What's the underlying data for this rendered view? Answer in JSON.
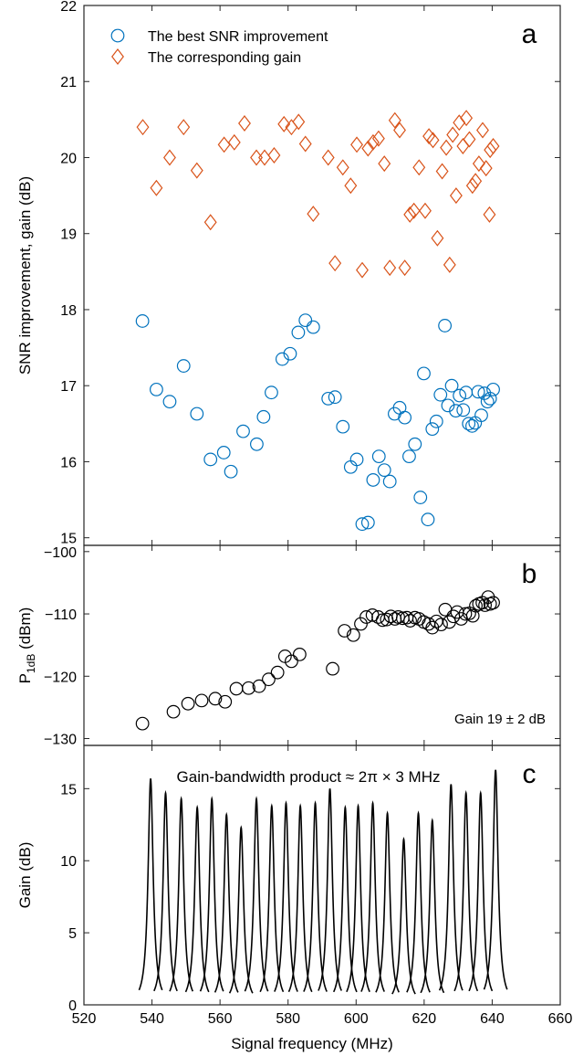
{
  "x_axis": {
    "label": "Signal frequency (MHz)",
    "min": 520,
    "max": 660,
    "ticks": [
      520,
      540,
      560,
      580,
      600,
      620,
      640,
      660
    ]
  },
  "chart_data": [
    {
      "panel": "a",
      "type": "scatter",
      "ylabel": "SNR improvement, gain (dB)",
      "ylim": [
        14.9,
        22.0
      ],
      "yticks": [
        15,
        16,
        17,
        18,
        19,
        20,
        21,
        22
      ],
      "legend": "top-left",
      "series": [
        {
          "name": "The best SNR improvement",
          "marker": "circle",
          "color": "#0072BD",
          "points": [
            [
              537.2,
              17.85
            ],
            [
              541.3,
              16.95
            ],
            [
              545.2,
              16.79
            ],
            [
              549.3,
              17.26
            ],
            [
              553.2,
              16.63
            ],
            [
              557.2,
              16.03
            ],
            [
              561.1,
              16.12
            ],
            [
              563.2,
              15.87
            ],
            [
              566.8,
              16.4
            ],
            [
              570.8,
              16.23
            ],
            [
              572.8,
              16.59
            ],
            [
              575.1,
              16.91
            ],
            [
              578.3,
              17.35
            ],
            [
              580.6,
              17.42
            ],
            [
              583.0,
              17.7
            ],
            [
              585.1,
              17.86
            ],
            [
              587.4,
              17.77
            ],
            [
              591.8,
              16.83
            ],
            [
              593.8,
              16.85
            ],
            [
              596.1,
              16.46
            ],
            [
              598.4,
              15.93
            ],
            [
              600.2,
              16.03
            ],
            [
              601.8,
              15.18
            ],
            [
              603.5,
              15.2
            ],
            [
              605.0,
              15.76
            ],
            [
              606.7,
              16.07
            ],
            [
              608.3,
              15.89
            ],
            [
              609.9,
              15.74
            ],
            [
              611.3,
              16.63
            ],
            [
              612.8,
              16.71
            ],
            [
              614.3,
              16.58
            ],
            [
              615.6,
              16.07
            ],
            [
              617.3,
              16.23
            ],
            [
              618.9,
              15.53
            ],
            [
              619.9,
              17.16
            ],
            [
              621.1,
              15.24
            ],
            [
              622.4,
              16.43
            ],
            [
              623.6,
              16.53
            ],
            [
              624.8,
              16.88
            ],
            [
              626.1,
              17.79
            ],
            [
              627.0,
              16.74
            ],
            [
              628.1,
              17.0
            ],
            [
              629.3,
              16.67
            ],
            [
              630.4,
              16.87
            ],
            [
              631.5,
              16.68
            ],
            [
              632.3,
              16.91
            ],
            [
              633.1,
              16.5
            ],
            [
              634.1,
              16.47
            ],
            [
              635.0,
              16.51
            ],
            [
              635.9,
              16.92
            ],
            [
              636.8,
              16.61
            ],
            [
              637.7,
              16.9
            ],
            [
              638.6,
              16.79
            ],
            [
              639.4,
              16.83
            ],
            [
              640.3,
              16.95
            ]
          ]
        },
        {
          "name": "The corresponding gain",
          "marker": "diamond",
          "color": "#D95319",
          "points": [
            [
              537.3,
              20.4
            ],
            [
              541.3,
              19.6
            ],
            [
              545.2,
              20.0
            ],
            [
              549.3,
              20.4
            ],
            [
              553.2,
              19.83
            ],
            [
              557.2,
              19.15
            ],
            [
              561.2,
              20.17
            ],
            [
              564.2,
              20.2
            ],
            [
              567.2,
              20.45
            ],
            [
              570.7,
              20.0
            ],
            [
              573.1,
              20.0
            ],
            [
              575.9,
              20.03
            ],
            [
              578.8,
              20.44
            ],
            [
              581.0,
              20.4
            ],
            [
              583.1,
              20.47
            ],
            [
              585.1,
              20.18
            ],
            [
              587.4,
              19.26
            ],
            [
              591.8,
              20.0
            ],
            [
              593.8,
              18.61
            ],
            [
              596.1,
              19.87
            ],
            [
              598.4,
              19.63
            ],
            [
              600.2,
              20.17
            ],
            [
              601.8,
              18.52
            ],
            [
              603.5,
              20.12
            ],
            [
              605.0,
              20.2
            ],
            [
              606.6,
              20.25
            ],
            [
              608.3,
              19.92
            ],
            [
              609.9,
              18.55
            ],
            [
              611.4,
              20.49
            ],
            [
              612.8,
              20.36
            ],
            [
              614.3,
              18.55
            ],
            [
              615.8,
              19.25
            ],
            [
              617.0,
              19.3
            ],
            [
              618.5,
              19.87
            ],
            [
              620.3,
              19.3
            ],
            [
              621.4,
              20.28
            ],
            [
              622.6,
              20.23
            ],
            [
              623.9,
              18.94
            ],
            [
              625.3,
              19.82
            ],
            [
              626.5,
              20.13
            ],
            [
              627.5,
              18.59
            ],
            [
              628.4,
              20.3
            ],
            [
              629.4,
              19.5
            ],
            [
              630.3,
              20.46
            ],
            [
              631.4,
              20.15
            ],
            [
              632.4,
              20.52
            ],
            [
              633.3,
              20.24
            ],
            [
              634.2,
              19.63
            ],
            [
              635.1,
              19.69
            ],
            [
              636.1,
              19.92
            ],
            [
              637.2,
              20.36
            ],
            [
              638.2,
              19.86
            ],
            [
              639.2,
              19.25
            ],
            [
              639.4,
              20.1
            ],
            [
              640.3,
              20.15
            ]
          ]
        }
      ]
    },
    {
      "panel": "b",
      "type": "scatter",
      "ylabel_main": "P",
      "ylabel_sub": "1dB",
      "ylabel_unit": " (dBm)",
      "ylim": [
        -131.1,
        -99.0
      ],
      "yticks": [
        -100,
        -110,
        -120,
        -130
      ],
      "annotation": "Gain 19 ± 2 dB",
      "series": [
        {
          "marker": "circle",
          "color": "#000000",
          "points": [
            [
              537.2,
              -127.6
            ],
            [
              546.3,
              -125.7
            ],
            [
              550.6,
              -124.4
            ],
            [
              554.6,
              -123.9
            ],
            [
              558.6,
              -123.6
            ],
            [
              561.5,
              -124.1
            ],
            [
              564.8,
              -122.0
            ],
            [
              568.4,
              -121.9
            ],
            [
              571.5,
              -121.6
            ],
            [
              574.3,
              -120.5
            ],
            [
              576.9,
              -119.4
            ],
            [
              579.1,
              -116.8
            ],
            [
              581.0,
              -117.6
            ],
            [
              583.4,
              -116.5
            ],
            [
              593.1,
              -118.8
            ],
            [
              596.6,
              -112.7
            ],
            [
              599.2,
              -113.4
            ],
            [
              601.4,
              -111.6
            ],
            [
              603.0,
              -110.5
            ],
            [
              604.8,
              -110.2
            ],
            [
              606.5,
              -110.5
            ],
            [
              607.8,
              -111.0
            ],
            [
              609.0,
              -110.9
            ],
            [
              610.2,
              -110.4
            ],
            [
              611.4,
              -110.8
            ],
            [
              612.4,
              -110.5
            ],
            [
              613.7,
              -110.7
            ],
            [
              614.9,
              -110.6
            ],
            [
              615.9,
              -111.1
            ],
            [
              617.3,
              -110.6
            ],
            [
              618.5,
              -110.8
            ],
            [
              619.9,
              -111.3
            ],
            [
              621.3,
              -111.6
            ],
            [
              622.4,
              -112.2
            ],
            [
              623.6,
              -111.2
            ],
            [
              625.0,
              -111.7
            ],
            [
              626.2,
              -109.3
            ],
            [
              627.4,
              -111.3
            ],
            [
              628.6,
              -110.4
            ],
            [
              629.7,
              -109.7
            ],
            [
              630.9,
              -110.8
            ],
            [
              632.1,
              -110.0
            ],
            [
              633.3,
              -109.9
            ],
            [
              634.3,
              -110.3
            ],
            [
              635.2,
              -108.7
            ],
            [
              636.1,
              -108.4
            ],
            [
              637.1,
              -108.2
            ],
            [
              637.9,
              -108.6
            ],
            [
              638.8,
              -107.3
            ],
            [
              639.4,
              -108.4
            ],
            [
              640.3,
              -108.2
            ]
          ]
        }
      ]
    },
    {
      "panel": "c",
      "type": "line",
      "ylabel": "Gain (dB)",
      "ylim": [
        0,
        18.0
      ],
      "yticks": [
        0,
        5,
        10,
        15
      ],
      "title": "Gain-bandwidth product ≈ 2π × 3 MHz",
      "peaks": [
        {
          "f": 539.6,
          "g": 15.7
        },
        {
          "f": 544.0,
          "g": 14.7
        },
        {
          "f": 548.6,
          "g": 14.3
        },
        {
          "f": 553.3,
          "g": 13.7
        },
        {
          "f": 557.6,
          "g": 14.3
        },
        {
          "f": 561.9,
          "g": 13.2
        },
        {
          "f": 566.2,
          "g": 12.3
        },
        {
          "f": 570.7,
          "g": 14.3
        },
        {
          "f": 575.2,
          "g": 13.8
        },
        {
          "f": 579.4,
          "g": 14.0
        },
        {
          "f": 583.6,
          "g": 13.8
        },
        {
          "f": 588.0,
          "g": 14.0
        },
        {
          "f": 592.3,
          "g": 15.0
        },
        {
          "f": 596.8,
          "g": 13.7
        },
        {
          "f": 600.6,
          "g": 13.8
        },
        {
          "f": 604.9,
          "g": 14.0
        },
        {
          "f": 609.2,
          "g": 13.3
        },
        {
          "f": 614.0,
          "g": 11.5
        },
        {
          "f": 618.3,
          "g": 13.3
        },
        {
          "f": 622.4,
          "g": 12.8
        },
        {
          "f": 627.9,
          "g": 15.3
        },
        {
          "f": 632.3,
          "g": 14.7
        },
        {
          "f": 636.6,
          "g": 14.7
        },
        {
          "f": 641.0,
          "g": 16.3
        }
      ]
    }
  ],
  "panel_labels": [
    "a",
    "b",
    "c"
  ]
}
